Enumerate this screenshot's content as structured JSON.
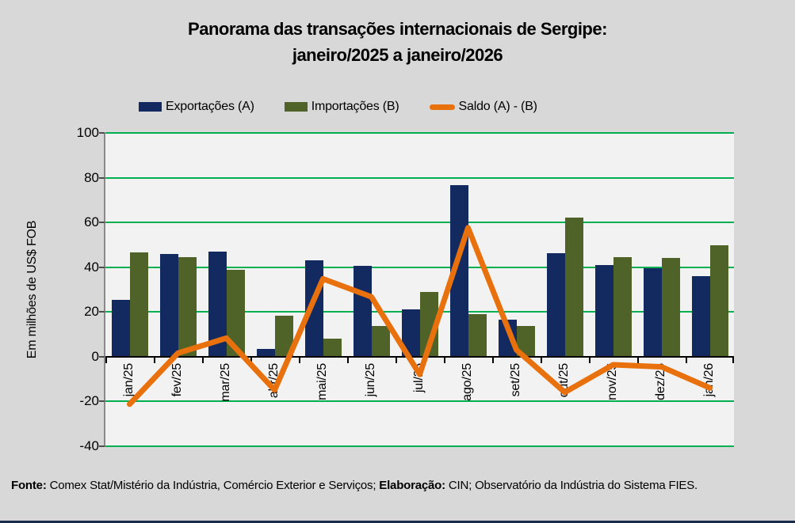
{
  "title": {
    "line1": "Panorama das transações internacionais de Sergipe:",
    "line2": "janeiro/2025 a janeiro/2026"
  },
  "chart_data": {
    "type": "bar",
    "title": "Panorama das transações internacionais de Sergipe: janeiro/2025 a janeiro/2026",
    "categories": [
      "jan/25",
      "fev/25",
      "mar/25",
      "abr/25",
      "mai/25",
      "jun/25",
      "jul/25",
      "ago/25",
      "set/25",
      "out/25",
      "nov/25",
      "dez/25",
      "jan/26"
    ],
    "series": [
      {
        "name": "Exportações (A)",
        "type": "bar",
        "color": "#132a60",
        "values": [
          25.5,
          46.0,
          47.0,
          3.5,
          43.0,
          40.5,
          21.2,
          76.5,
          16.7,
          46.4,
          41.0,
          39.5,
          36.0
        ]
      },
      {
        "name": "Importações (B)",
        "type": "bar",
        "color": "#4f6228",
        "values": [
          46.7,
          44.4,
          38.7,
          18.4,
          8.2,
          13.7,
          29.1,
          18.9,
          13.6,
          62.3,
          44.6,
          44.0,
          49.9
        ]
      },
      {
        "name": "Saldo (A) - (B)",
        "type": "line",
        "color": "#e8710d",
        "values": [
          -21.2,
          1.6,
          8.3,
          -14.9,
          34.8,
          26.8,
          -7.9,
          57.6,
          3.1,
          -15.9,
          -3.6,
          -4.5,
          -13.9
        ]
      }
    ],
    "xlabel": "",
    "ylabel": "Em milhões de US$ FOB",
    "ylim": [
      -40,
      100
    ],
    "yticks": [
      100,
      80,
      60,
      40,
      20,
      0,
      -20,
      -40
    ],
    "grid": true,
    "gridline_color": "#00b050",
    "plot_background": "#f2f2f2",
    "page_background": "#d8d8d8",
    "legend_position": "top"
  },
  "footer": {
    "parts": [
      {
        "text": "Fonte:"
      },
      {
        "text": " Comex Stat/Mistério da Indústria, Comércio Exterior e Serviços; "
      },
      {
        "text": "Elaboração:"
      },
      {
        "text": " CIN; Observatório da Indústria do Sistema FIES."
      }
    ]
  },
  "bottom_strip_color": "#1b2a4a"
}
